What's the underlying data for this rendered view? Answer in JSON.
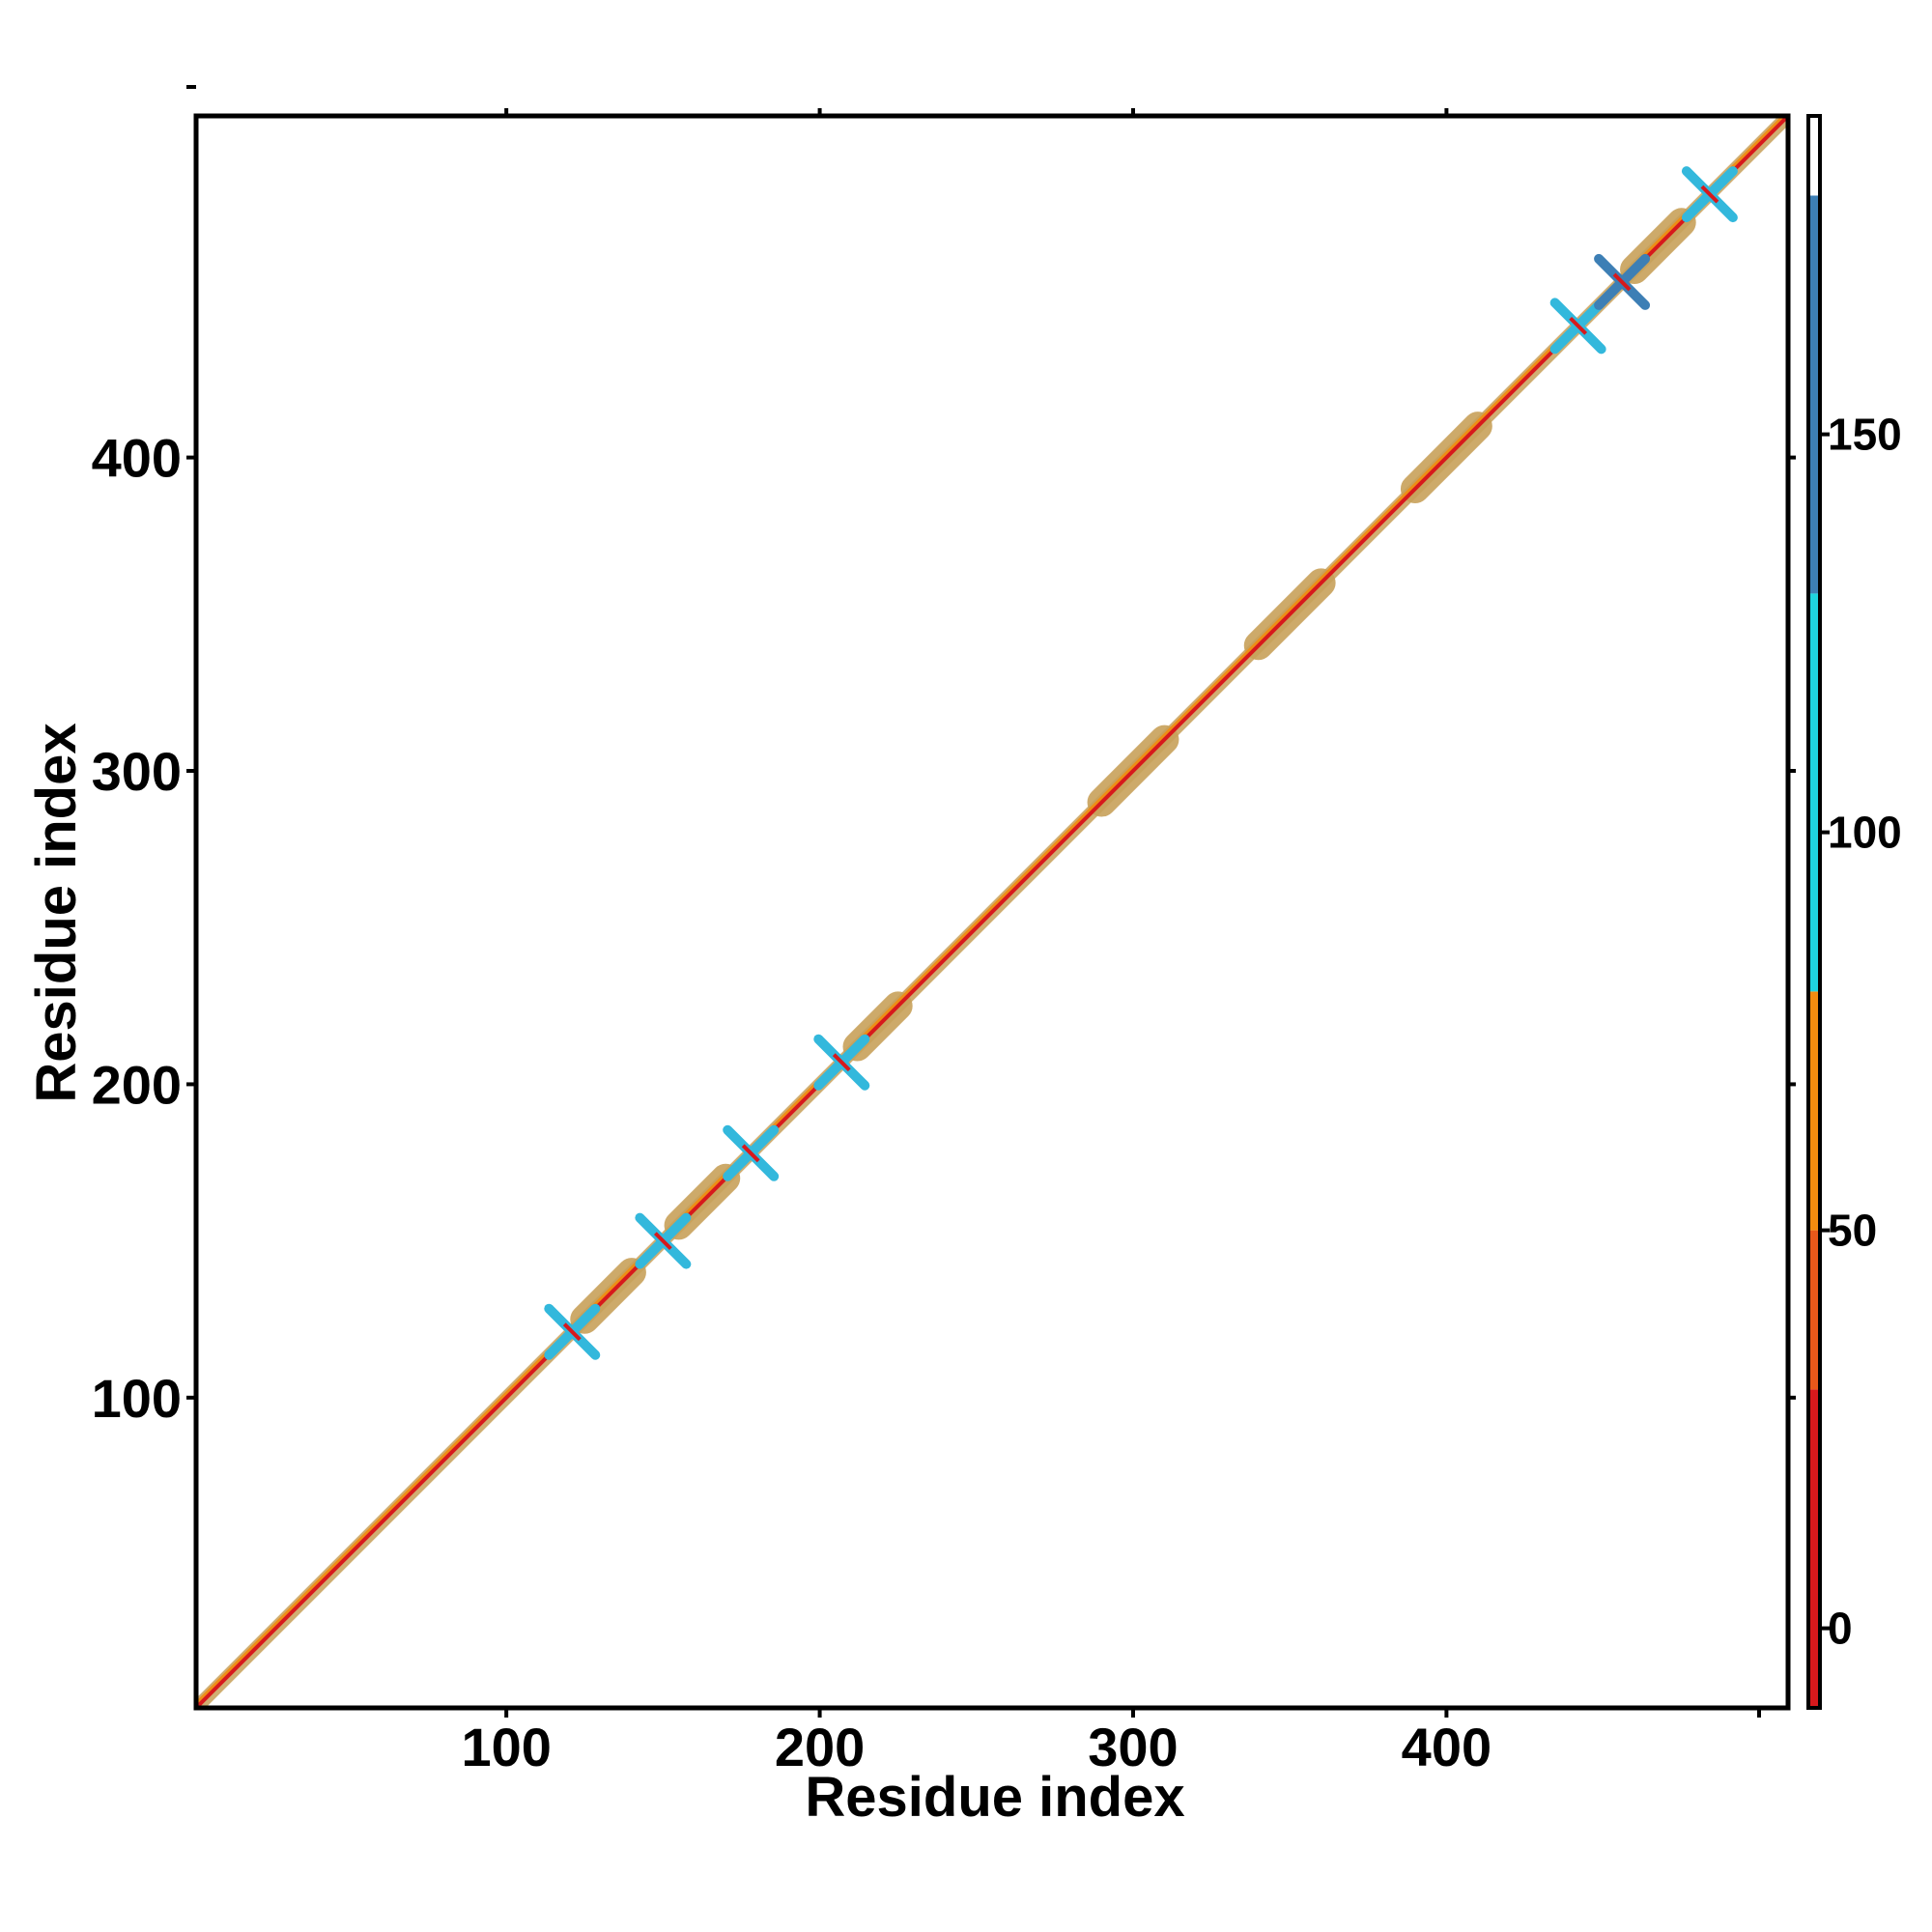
{
  "chart_data": {
    "type": "heatmap",
    "xlabel": "Residue index",
    "ylabel": "Residue index",
    "xlim": [
      1,
      509
    ],
    "ylim": [
      1,
      509
    ],
    "x_ticks": [
      100,
      200,
      300,
      400
    ],
    "y_ticks": [
      100,
      200,
      300,
      400
    ],
    "grid": false,
    "legend": "colorbar-right",
    "colorbar": {
      "range": [
        -10,
        190
      ],
      "ticks": [
        0,
        50,
        100,
        150
      ],
      "segments": [
        {
          "from": -10,
          "to": 30,
          "color": "#d7191c"
        },
        {
          "from": 30,
          "to": 50,
          "color": "#e8581a"
        },
        {
          "from": 50,
          "to": 80,
          "color": "#f28c0f"
        },
        {
          "from": 80,
          "to": 130,
          "color": "#1fd3df"
        },
        {
          "from": 130,
          "to": 180,
          "color": "#3d7fb5"
        },
        {
          "from": 180,
          "to": 190,
          "color": "#ffffff"
        }
      ]
    },
    "diagonal_band": {
      "start": 1,
      "end": 509,
      "core_color": "#d7191c",
      "band_color": "#c8a15a",
      "accent_color": "#f28c0f"
    },
    "thick_segments": [
      {
        "from": 125,
        "to": 140
      },
      {
        "from": 155,
        "to": 170
      },
      {
        "from": 212,
        "to": 225
      },
      {
        "from": 290,
        "to": 310
      },
      {
        "from": 340,
        "to": 360
      },
      {
        "from": 390,
        "to": 410
      },
      {
        "from": 460,
        "to": 475
      }
    ],
    "contact_clusters": [
      {
        "x": 121,
        "y": 121,
        "color": "#33b8dc"
      },
      {
        "x": 150,
        "y": 150,
        "color": "#33b8dc"
      },
      {
        "x": 178,
        "y": 178,
        "color": "#33b8dc"
      },
      {
        "x": 207,
        "y": 207,
        "color": "#33b8dc"
      },
      {
        "x": 442,
        "y": 442,
        "color": "#33b8dc"
      },
      {
        "x": 456,
        "y": 456,
        "color": "#3d7fb5"
      },
      {
        "x": 484,
        "y": 484,
        "color": "#33b8dc"
      }
    ]
  }
}
